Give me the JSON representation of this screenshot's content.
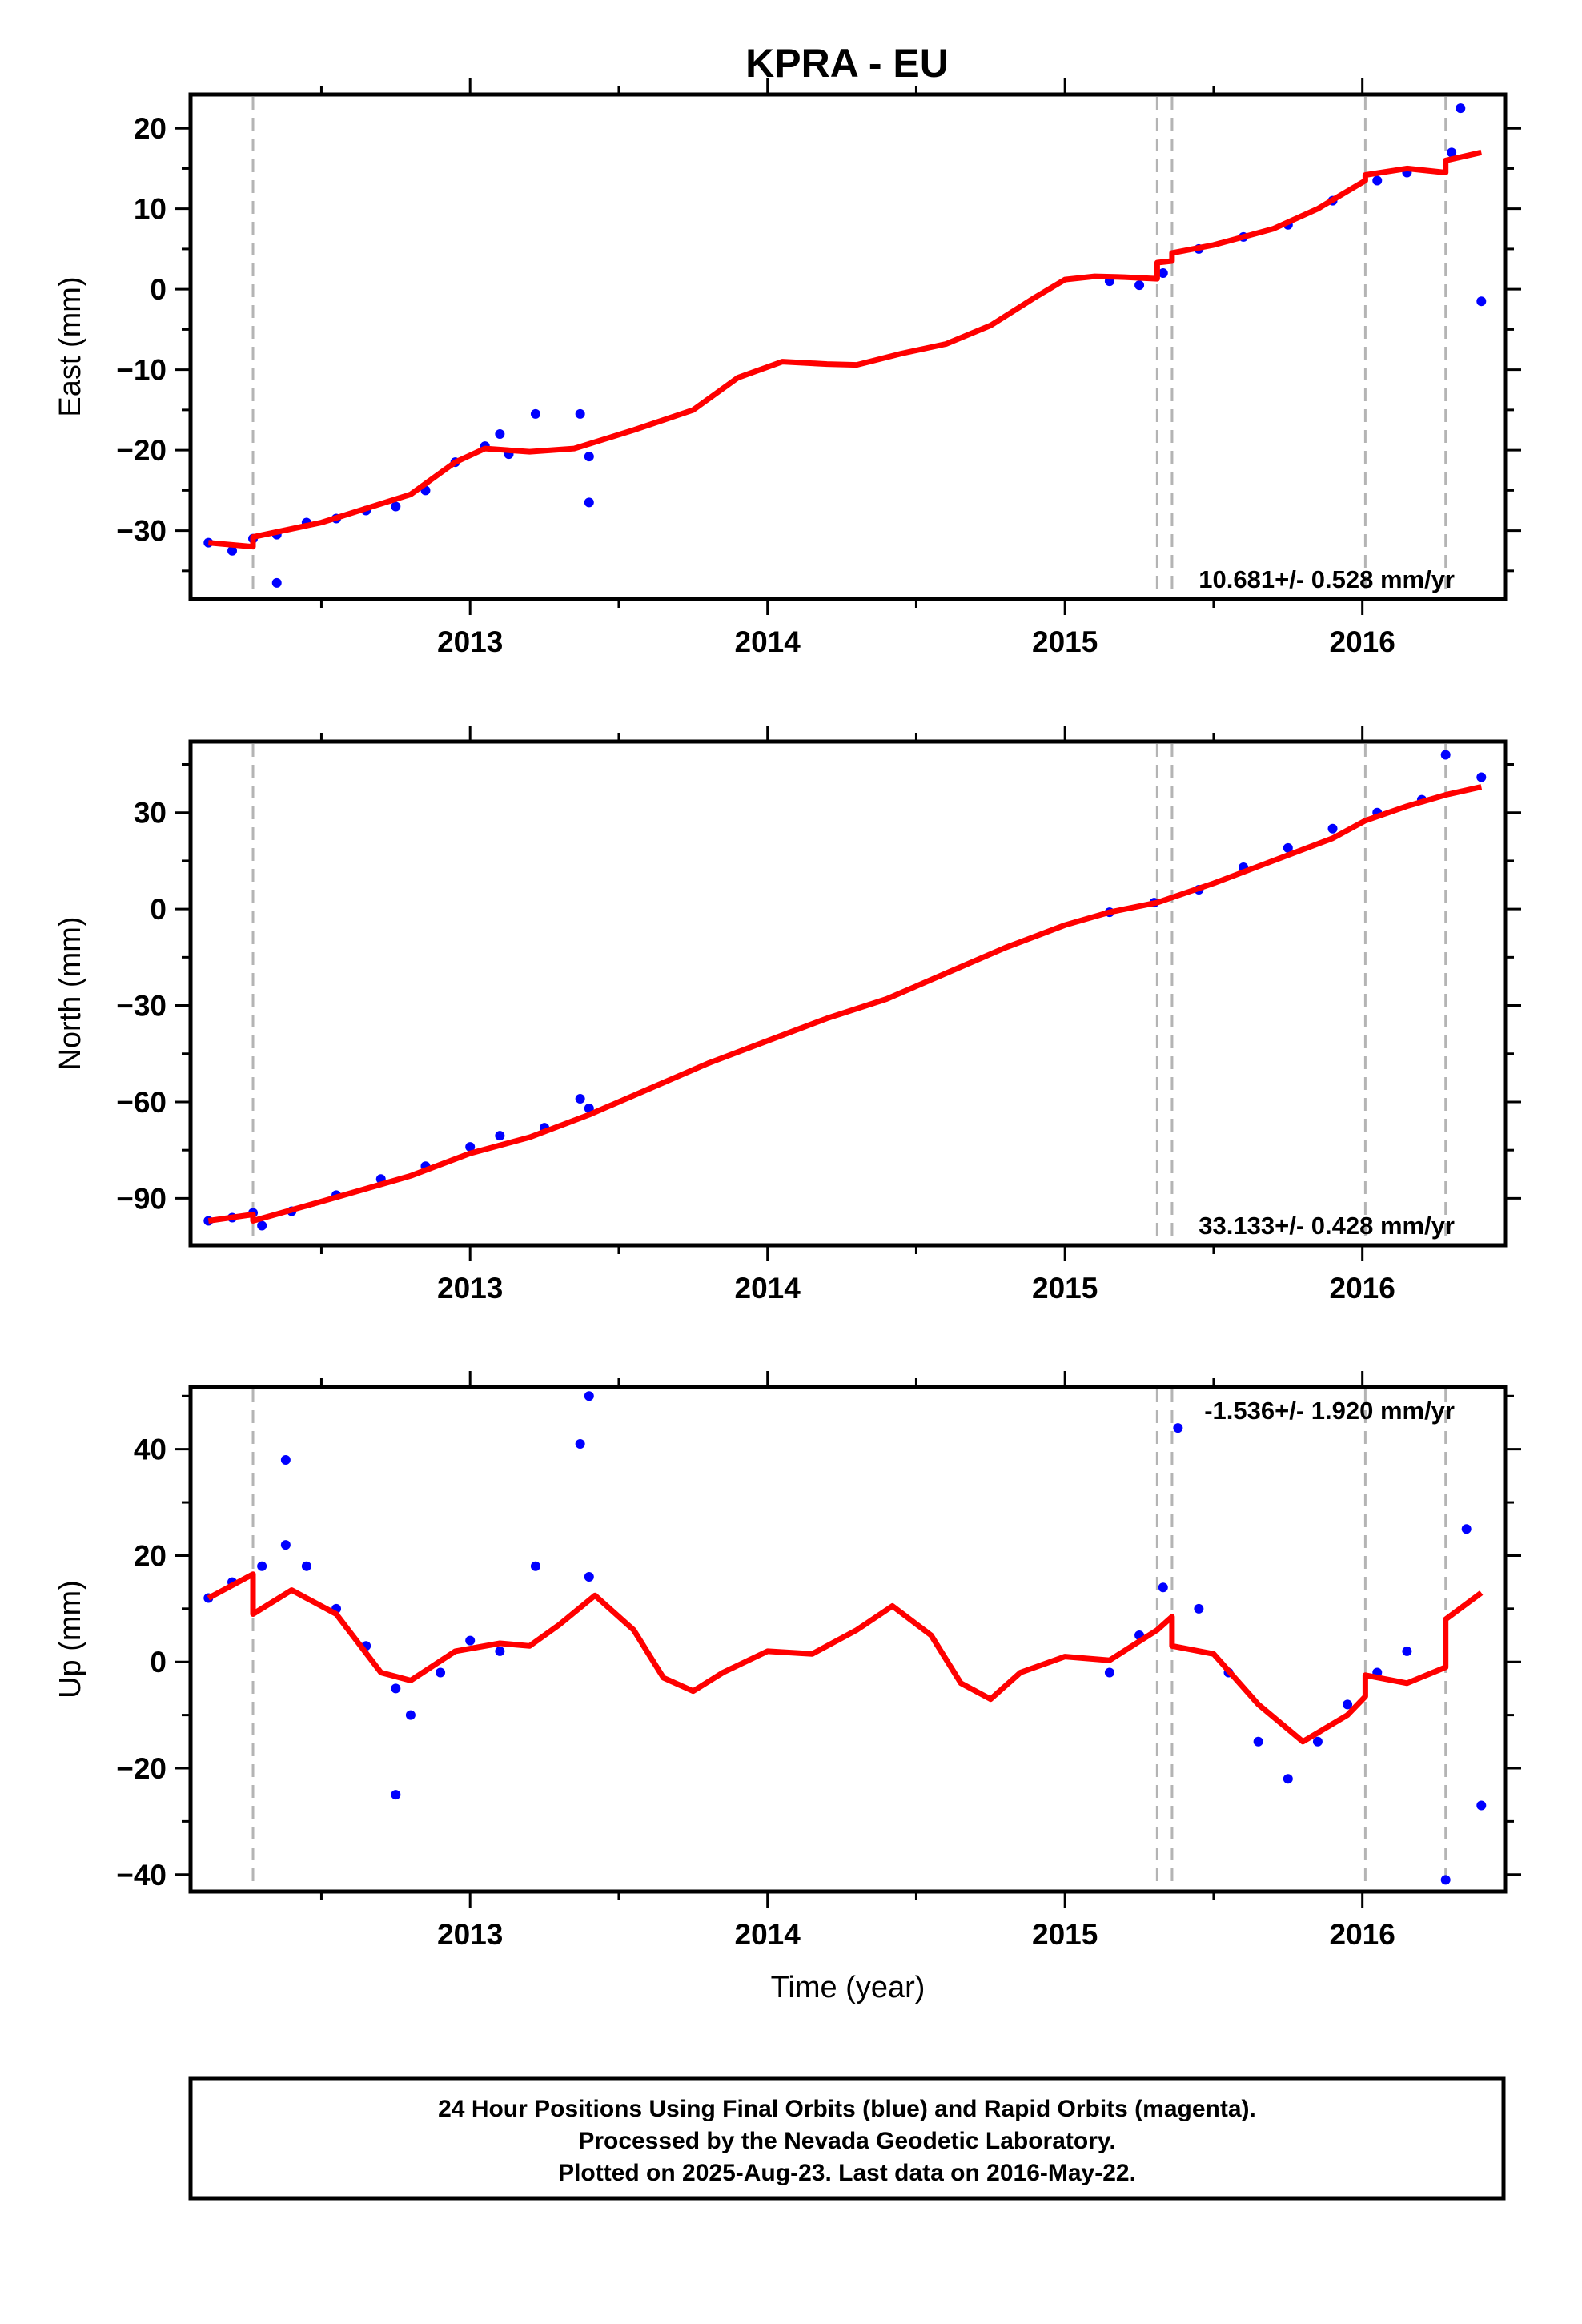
{
  "title": "KPRA - EU",
  "chart_data": [
    {
      "type": "scatter",
      "ylabel": "East (mm)",
      "xlim": [
        2012.06,
        2016.48
      ],
      "ylim": [
        -38.5,
        24.2
      ],
      "yticks": [
        -30,
        -20,
        -10,
        0,
        10,
        20
      ],
      "ytick_labels": [
        "−30",
        "−20",
        "−10",
        "0",
        "10",
        "20"
      ],
      "xticks": [
        2013,
        2014,
        2015,
        2016
      ],
      "xtick_labels": [
        "2013",
        "2014",
        "2015",
        "2016"
      ],
      "rate_text": "10.681+/- 0.528 mm/yr",
      "rate_position": "bottom-right",
      "steps": [
        2012.27,
        2015.31,
        2015.36,
        2016.01,
        2016.28
      ],
      "series": [
        {
          "role": "observations",
          "color": "#0000ff",
          "points": [
            [
              2012.12,
              -31.5
            ],
            [
              2012.2,
              -32.5
            ],
            [
              2012.27,
              -31
            ],
            [
              2012.35,
              -30.5
            ],
            [
              2012.45,
              -29
            ],
            [
              2012.55,
              -28.5
            ],
            [
              2012.65,
              -27.5
            ],
            [
              2012.75,
              -27
            ],
            [
              2012.85,
              -25
            ],
            [
              2012.95,
              -21.5
            ],
            [
              2013.05,
              -19.5
            ],
            [
              2013.1,
              -18
            ],
            [
              2013.13,
              -20.5
            ],
            [
              2013.22,
              -15.5
            ],
            [
              2013.37,
              -15.5
            ],
            [
              2013.4,
              -20.8
            ],
            [
              2013.4,
              -26.5
            ],
            [
              2012.35,
              -36.5
            ],
            [
              2015.15,
              1
            ],
            [
              2015.25,
              0.5
            ],
            [
              2015.33,
              2
            ],
            [
              2015.45,
              5
            ],
            [
              2015.6,
              6.5
            ],
            [
              2015.75,
              8
            ],
            [
              2015.9,
              11
            ],
            [
              2016.05,
              13.5
            ],
            [
              2016.15,
              14.5
            ],
            [
              2016.3,
              17
            ],
            [
              2016.33,
              22.5
            ],
            [
              2016.4,
              -1.5
            ]
          ]
        },
        {
          "role": "model",
          "color": "#ff0000",
          "points": [
            [
              2012.12,
              -31.5
            ],
            [
              2012.27,
              -32
            ],
            [
              2012.27,
              -30.8
            ],
            [
              2012.5,
              -29
            ],
            [
              2012.8,
              -25.5
            ],
            [
              2012.95,
              -21.5
            ],
            [
              2013.05,
              -19.8
            ],
            [
              2013.2,
              -20.2
            ],
            [
              2013.35,
              -19.8
            ],
            [
              2013.55,
              -17.5
            ],
            [
              2013.75,
              -15
            ],
            [
              2013.9,
              -11
            ],
            [
              2014.05,
              -9
            ],
            [
              2014.2,
              -9.3
            ],
            [
              2014.3,
              -9.4
            ],
            [
              2014.45,
              -8
            ],
            [
              2014.6,
              -6.8
            ],
            [
              2014.75,
              -4.5
            ],
            [
              2014.9,
              -1
            ],
            [
              2015.0,
              1.2
            ],
            [
              2015.1,
              1.6
            ],
            [
              2015.2,
              1.5
            ],
            [
              2015.31,
              1.3
            ],
            [
              2015.31,
              3.3
            ],
            [
              2015.36,
              3.5
            ],
            [
              2015.36,
              4.5
            ],
            [
              2015.5,
              5.5
            ],
            [
              2015.7,
              7.5
            ],
            [
              2015.85,
              10
            ],
            [
              2016.01,
              13.5
            ],
            [
              2016.01,
              14.2
            ],
            [
              2016.15,
              15
            ],
            [
              2016.28,
              14.5
            ],
            [
              2016.28,
              16
            ],
            [
              2016.4,
              17
            ]
          ]
        }
      ]
    },
    {
      "type": "scatter",
      "ylabel": "North (mm)",
      "xlim": [
        2012.06,
        2016.48
      ],
      "ylim": [
        -104.6,
        52.1
      ],
      "yticks": [
        -90,
        -60,
        -30,
        0,
        30
      ],
      "ytick_labels": [
        "−90",
        "−60",
        "−30",
        "0",
        "30"
      ],
      "xticks": [
        2013,
        2014,
        2015,
        2016
      ],
      "xtick_labels": [
        "2013",
        "2014",
        "2015",
        "2016"
      ],
      "rate_text": "33.133+/- 0.428 mm/yr",
      "rate_position": "bottom-right",
      "steps": [
        2012.27,
        2015.31,
        2015.36,
        2016.01,
        2016.28
      ],
      "series": [
        {
          "role": "observations",
          "color": "#0000ff",
          "points": [
            [
              2012.12,
              -97
            ],
            [
              2012.2,
              -96
            ],
            [
              2012.27,
              -94.5
            ],
            [
              2012.3,
              -98.5
            ],
            [
              2012.4,
              -94
            ],
            [
              2012.55,
              -89
            ],
            [
              2012.7,
              -84
            ],
            [
              2012.85,
              -80
            ],
            [
              2013.0,
              -74
            ],
            [
              2013.1,
              -70.5
            ],
            [
              2013.25,
              -68
            ],
            [
              2013.37,
              -59
            ],
            [
              2013.4,
              -62
            ],
            [
              2015.15,
              -1
            ],
            [
              2015.3,
              2
            ],
            [
              2015.45,
              6
            ],
            [
              2015.6,
              13
            ],
            [
              2015.75,
              19
            ],
            [
              2015.9,
              25
            ],
            [
              2016.05,
              30
            ],
            [
              2016.2,
              34
            ],
            [
              2016.28,
              48
            ],
            [
              2016.4,
              41
            ]
          ]
        },
        {
          "role": "model",
          "color": "#ff0000",
          "points": [
            [
              2012.12,
              -97
            ],
            [
              2012.27,
              -95
            ],
            [
              2012.27,
              -97
            ],
            [
              2012.5,
              -91
            ],
            [
              2012.8,
              -83
            ],
            [
              2013.0,
              -76
            ],
            [
              2013.2,
              -71
            ],
            [
              2013.4,
              -64
            ],
            [
              2013.6,
              -56
            ],
            [
              2013.8,
              -48
            ],
            [
              2014.0,
              -41
            ],
            [
              2014.2,
              -34
            ],
            [
              2014.4,
              -28
            ],
            [
              2014.6,
              -20
            ],
            [
              2014.8,
              -12
            ],
            [
              2015.0,
              -5
            ],
            [
              2015.15,
              -1
            ],
            [
              2015.31,
              2
            ],
            [
              2015.5,
              8
            ],
            [
              2015.7,
              15
            ],
            [
              2015.9,
              22
            ],
            [
              2016.01,
              27.5
            ],
            [
              2016.15,
              32
            ],
            [
              2016.28,
              35.5
            ],
            [
              2016.4,
              38
            ]
          ]
        }
      ]
    },
    {
      "type": "scatter",
      "ylabel": "Up (mm)",
      "xlabel": "Time (year)",
      "xlim": [
        2012.06,
        2016.48
      ],
      "ylim": [
        -43.2,
        51.7
      ],
      "yticks": [
        -40,
        -20,
        0,
        20,
        40
      ],
      "ytick_labels": [
        "−40",
        "−20",
        "0",
        "20",
        "40"
      ],
      "xticks": [
        2013,
        2014,
        2015,
        2016
      ],
      "xtick_labels": [
        "2013",
        "2014",
        "2015",
        "2016"
      ],
      "rate_text": "-1.536+/- 1.920 mm/yr",
      "rate_position": "top-right",
      "steps": [
        2012.27,
        2015.31,
        2015.36,
        2016.01,
        2016.28
      ],
      "series": [
        {
          "role": "observations",
          "color": "#0000ff",
          "points": [
            [
              2012.12,
              12
            ],
            [
              2012.2,
              15
            ],
            [
              2012.3,
              18
            ],
            [
              2012.38,
              22
            ],
            [
              2012.45,
              18
            ],
            [
              2012.55,
              10
            ],
            [
              2012.65,
              3
            ],
            [
              2012.75,
              -5
            ],
            [
              2012.8,
              -10
            ],
            [
              2012.9,
              -2
            ],
            [
              2013.0,
              4
            ],
            [
              2013.1,
              2
            ],
            [
              2012.75,
              -25
            ],
            [
              2012.38,
              38
            ],
            [
              2013.22,
              18
            ],
            [
              2013.37,
              41
            ],
            [
              2013.4,
              50
            ],
            [
              2013.4,
              16
            ],
            [
              2015.15,
              -2
            ],
            [
              2015.25,
              5
            ],
            [
              2015.33,
              14
            ],
            [
              2015.38,
              44
            ],
            [
              2015.45,
              10
            ],
            [
              2015.55,
              -2
            ],
            [
              2015.65,
              -15
            ],
            [
              2015.75,
              -22
            ],
            [
              2015.85,
              -15
            ],
            [
              2015.95,
              -8
            ],
            [
              2016.05,
              -2
            ],
            [
              2016.15,
              2
            ],
            [
              2016.28,
              -41
            ],
            [
              2016.35,
              25
            ],
            [
              2016.4,
              -27
            ]
          ]
        },
        {
          "role": "model",
          "color": "#ff0000",
          "points": [
            [
              2012.12,
              12
            ],
            [
              2012.27,
              16.5
            ],
            [
              2012.27,
              9
            ],
            [
              2012.4,
              13.5
            ],
            [
              2012.55,
              9
            ],
            [
              2012.7,
              -2
            ],
            [
              2012.8,
              -3.5
            ],
            [
              2012.95,
              2
            ],
            [
              2013.1,
              3.5
            ],
            [
              2013.2,
              3
            ],
            [
              2013.3,
              7
            ],
            [
              2013.42,
              12.5
            ],
            [
              2013.55,
              6
            ],
            [
              2013.65,
              -3
            ],
            [
              2013.75,
              -5.5
            ],
            [
              2013.85,
              -2
            ],
            [
              2014.0,
              2
            ],
            [
              2014.15,
              1.5
            ],
            [
              2014.3,
              6
            ],
            [
              2014.42,
              10.5
            ],
            [
              2014.55,
              5
            ],
            [
              2014.65,
              -4
            ],
            [
              2014.75,
              -7
            ],
            [
              2014.85,
              -2
            ],
            [
              2015.0,
              1
            ],
            [
              2015.15,
              0.3
            ],
            [
              2015.31,
              6
            ],
            [
              2015.36,
              8.5
            ],
            [
              2015.36,
              3
            ],
            [
              2015.5,
              1.5
            ],
            [
              2015.65,
              -8
            ],
            [
              2015.8,
              -15
            ],
            [
              2015.95,
              -10
            ],
            [
              2016.01,
              -6.5
            ],
            [
              2016.01,
              -2.5
            ],
            [
              2016.15,
              -4
            ],
            [
              2016.28,
              -1
            ],
            [
              2016.28,
              8
            ],
            [
              2016.4,
              13
            ]
          ]
        }
      ]
    }
  ],
  "footer": {
    "line1": "24 Hour Positions Using Final Orbits (blue) and Rapid Orbits (magenta).",
    "line2": "Processed by the Nevada Geodetic Laboratory.",
    "line3": "Plotted on 2025-Aug-23. Last data on 2016-May-22."
  }
}
